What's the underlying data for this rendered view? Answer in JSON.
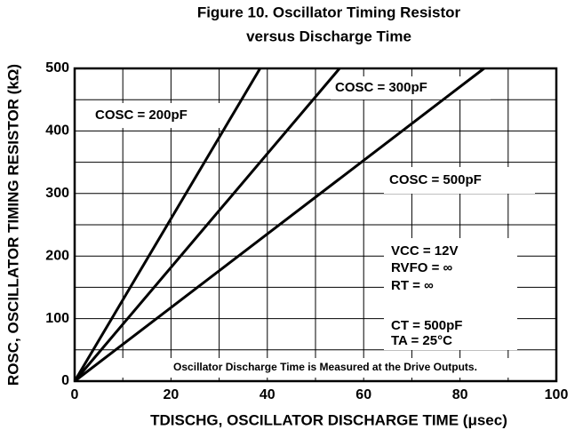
{
  "chart_data": {
    "type": "line",
    "title": [
      "Figure 10. Oscillator Timing Resistor",
      "versus Discharge Time"
    ],
    "x_label": "TDISCHG, OSCILLATOR DISCHARGE TIME (μsec)",
    "y_label": "ROSC, OSCILLATOR TIMING RESISTOR (kΩ)",
    "xlim": [
      0,
      100
    ],
    "ylim": [
      0,
      500
    ],
    "xticks": [
      0,
      20,
      40,
      60,
      80,
      100
    ],
    "yticks": [
      0,
      100,
      200,
      300,
      400,
      500
    ],
    "xminorticks": [
      10,
      30,
      50,
      70,
      90
    ],
    "yminorticks": [
      50,
      150,
      250,
      350,
      450
    ],
    "grid": true,
    "series": [
      {
        "name": "COSC = 200pF",
        "color": "#000000",
        "x": [
          0,
          38.5
        ],
        "values": [
          0,
          500
        ]
      },
      {
        "name": "COSC = 300pF",
        "color": "#000000",
        "x": [
          0,
          55
        ],
        "values": [
          0,
          500
        ]
      },
      {
        "name": "COSC = 500pF",
        "color": "#000000",
        "x": [
          0,
          85
        ],
        "values": [
          0,
          500
        ]
      }
    ],
    "annotations": [
      "VCC = 12V",
      "RVFO = ∞",
      "RT = ∞",
      "CT = 500pF",
      "TA = 25°C",
      "Oscillator Discharge Time is Measured at the Drive Outputs."
    ]
  }
}
